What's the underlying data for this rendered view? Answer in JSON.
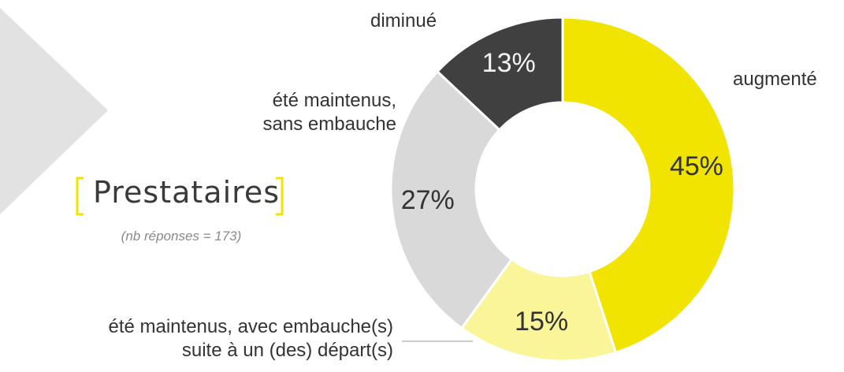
{
  "chart_data": {
    "type": "pie",
    "donut": true,
    "title": "Prestataires",
    "subtitle": "(nb réponses = 173)",
    "categories": [
      "augmenté",
      "été maintenus, avec embauche(s)\nsuite à un (des) départ(s)",
      "été maintenus,\nsans embauche",
      "diminué"
    ],
    "values": [
      45,
      15,
      27,
      13
    ],
    "value_labels": [
      "45%",
      "15%",
      "27%",
      "13%"
    ],
    "colors": [
      "#f0e400",
      "#fbf59a",
      "#d9d9d9",
      "#404040"
    ]
  }
}
